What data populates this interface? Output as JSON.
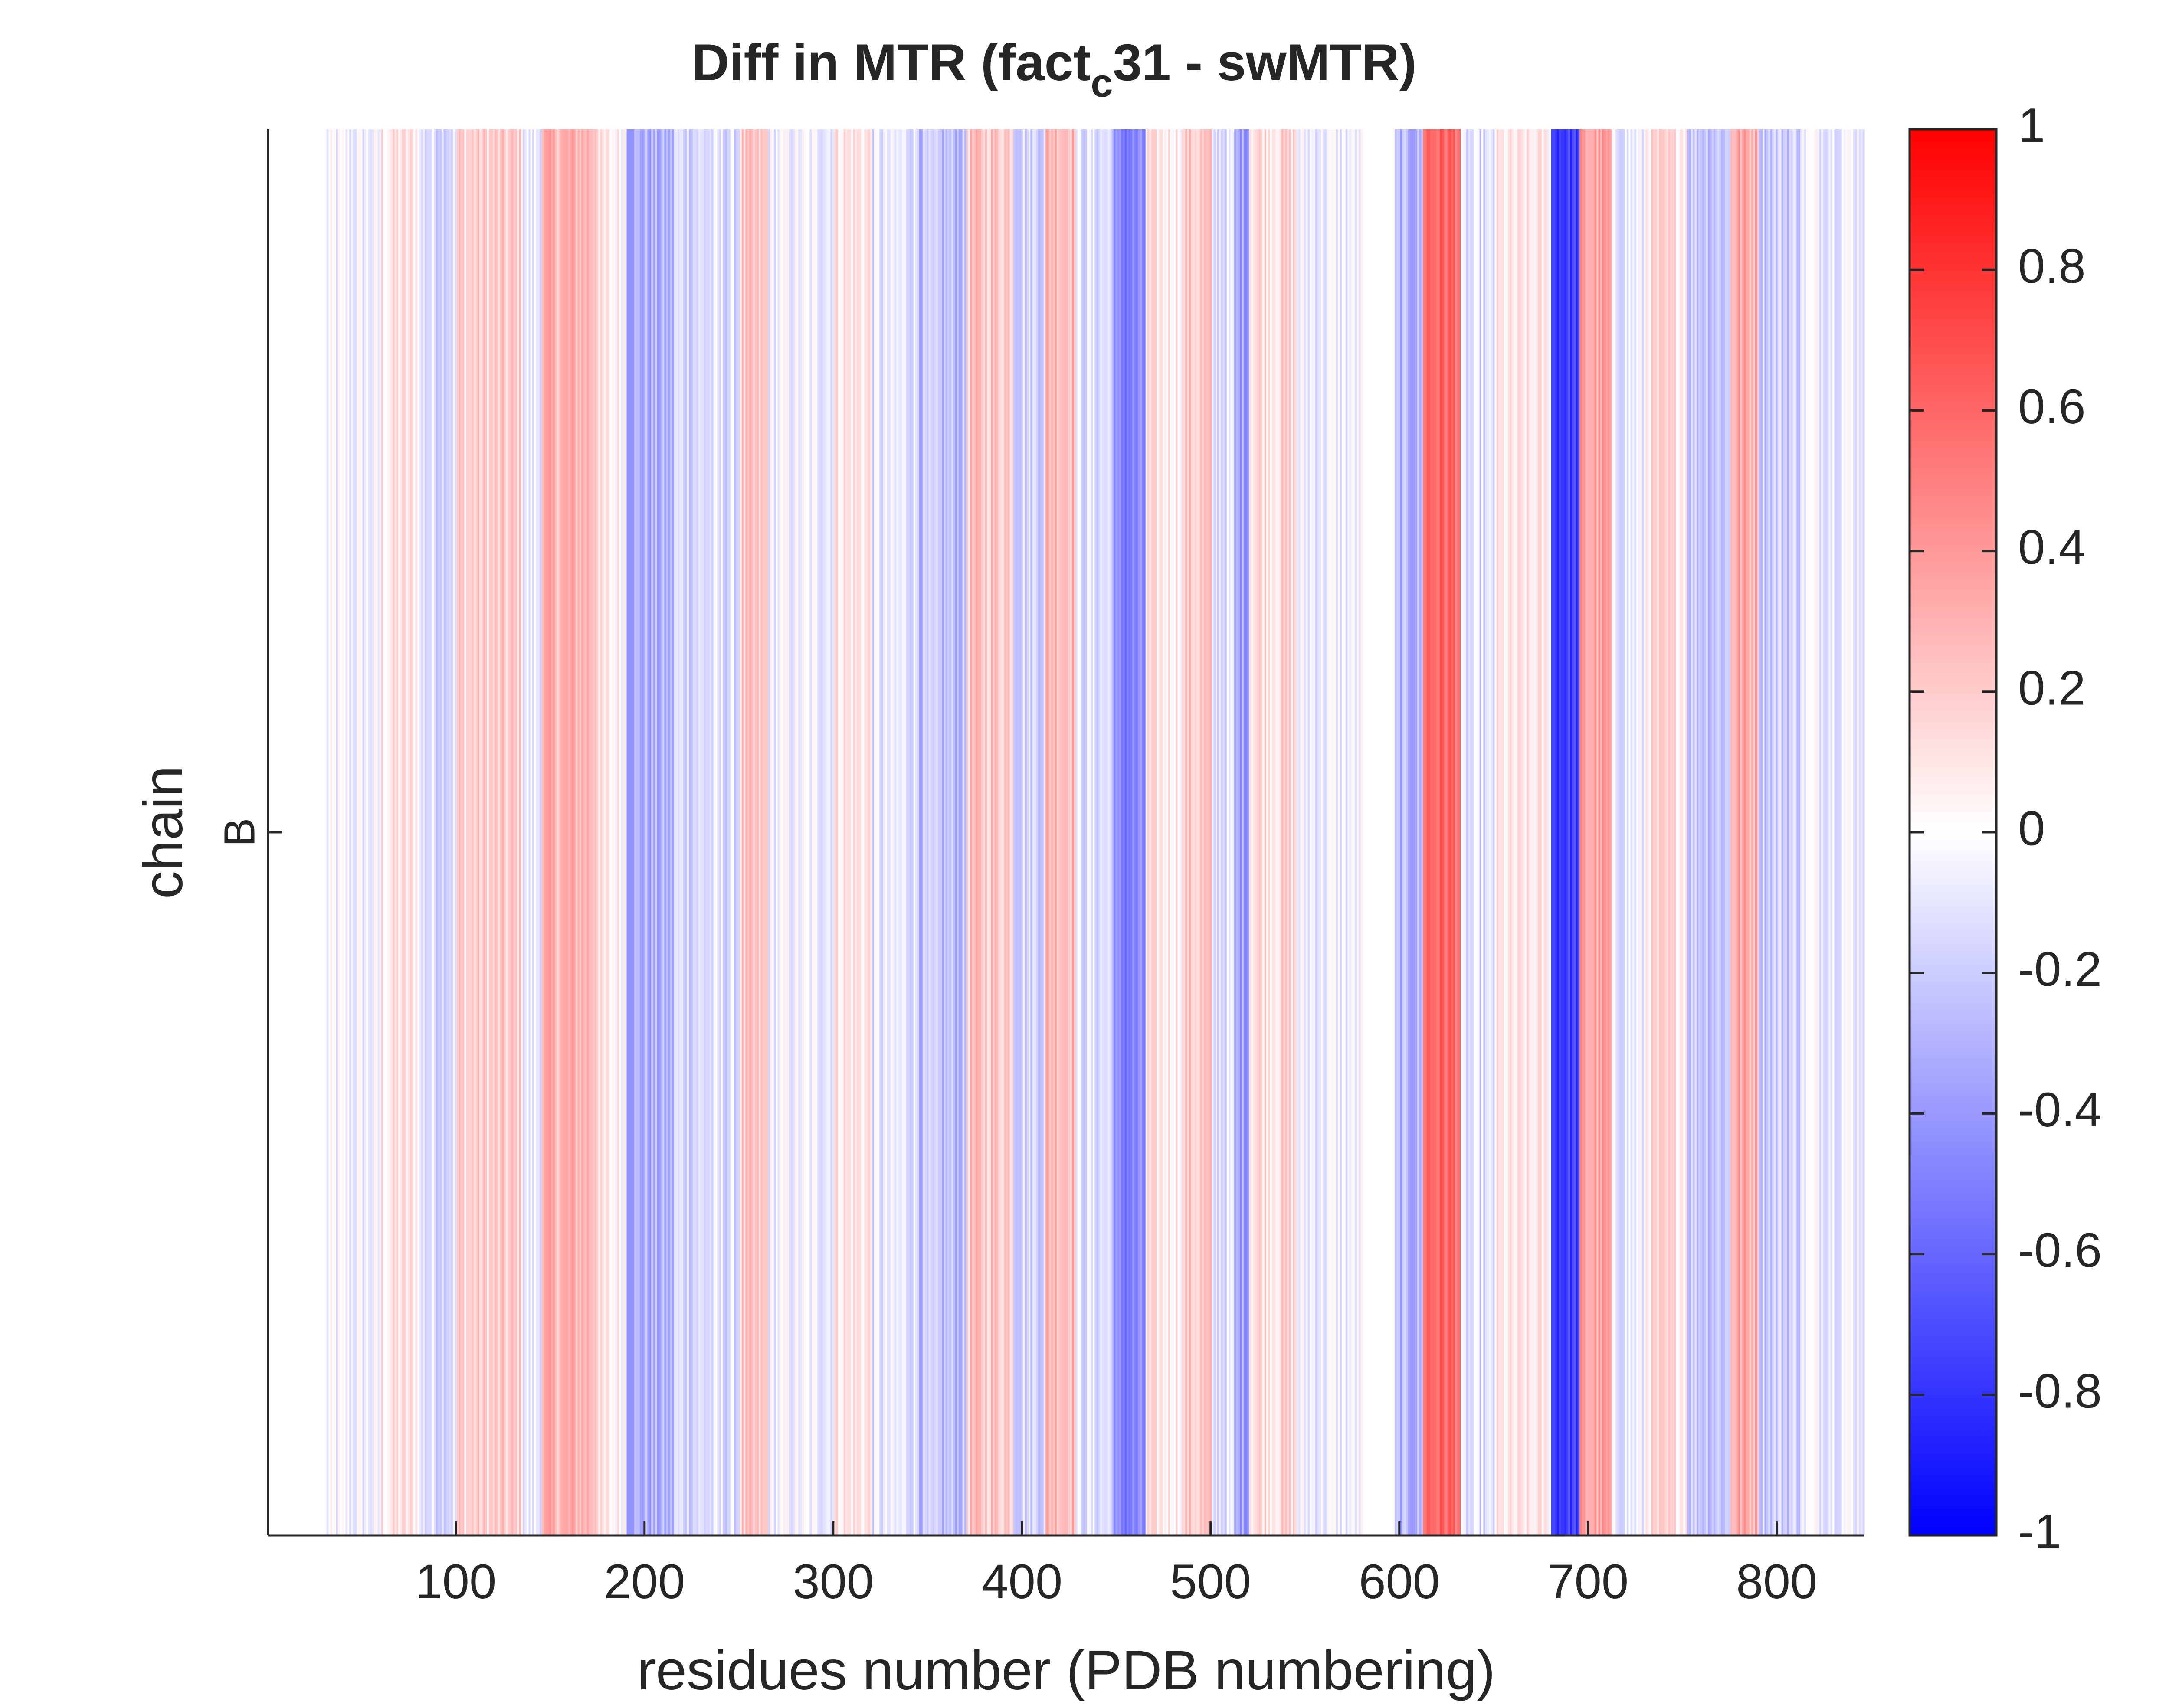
{
  "chart_data": {
    "type": "heatmap",
    "title": {
      "main": "Diff in MTR (fact",
      "sub": "c",
      "rest": "31 - swMTR)"
    },
    "xlabel": "residues number (PDB numbering)",
    "ylabel": "chain",
    "y_categories": [
      "B"
    ],
    "xlim": [
      1,
      846
    ],
    "x_ticks": [
      100,
      200,
      300,
      400,
      500,
      600,
      700,
      800
    ],
    "x_tick_labels": [
      "100",
      "200",
      "300",
      "400",
      "500",
      "600",
      "700",
      "800"
    ],
    "color_limits": [
      -1,
      1
    ],
    "colorbar_ticks": [
      1,
      0.8,
      0.6,
      0.4,
      0.2,
      0,
      -0.2,
      -0.4,
      -0.6,
      -0.8,
      -1
    ],
    "colorbar_tick_labels": [
      "1",
      "0.8",
      "0.6",
      "0.4",
      "0.2",
      "0",
      "-0.2",
      "-0.4",
      "-0.6",
      "-0.8",
      "-1"
    ],
    "colormap": {
      "low": "#0000ff",
      "mid": "#ffffff",
      "high": "#ff0000"
    },
    "residue_start": 31,
    "gaps": [
      [
        581,
        597
      ]
    ],
    "value_segments": [
      {
        "from": 31,
        "to": 60,
        "value": -0.06
      },
      {
        "from": 61,
        "to": 80,
        "value": 0.1
      },
      {
        "from": 81,
        "to": 100,
        "value": -0.12
      },
      {
        "from": 101,
        "to": 135,
        "value": 0.18
      },
      {
        "from": 136,
        "to": 145,
        "value": -0.08
      },
      {
        "from": 146,
        "to": 175,
        "value": 0.3
      },
      {
        "from": 176,
        "to": 190,
        "value": 0.05
      },
      {
        "from": 191,
        "to": 215,
        "value": -0.32
      },
      {
        "from": 216,
        "to": 250,
        "value": -0.14
      },
      {
        "from": 251,
        "to": 265,
        "value": 0.18
      },
      {
        "from": 266,
        "to": 300,
        "value": -0.05
      },
      {
        "from": 301,
        "to": 320,
        "value": 0.1
      },
      {
        "from": 321,
        "to": 345,
        "value": -0.1
      },
      {
        "from": 346,
        "to": 370,
        "value": -0.25
      },
      {
        "from": 371,
        "to": 395,
        "value": 0.22
      },
      {
        "from": 396,
        "to": 412,
        "value": -0.15
      },
      {
        "from": 413,
        "to": 428,
        "value": 0.3
      },
      {
        "from": 429,
        "to": 448,
        "value": -0.12
      },
      {
        "from": 449,
        "to": 465,
        "value": -0.5
      },
      {
        "from": 466,
        "to": 485,
        "value": 0.08
      },
      {
        "from": 486,
        "to": 500,
        "value": 0.2
      },
      {
        "from": 501,
        "to": 512,
        "value": -0.12
      },
      {
        "from": 513,
        "to": 520,
        "value": -0.35
      },
      {
        "from": 521,
        "to": 545,
        "value": 0.15
      },
      {
        "from": 546,
        "to": 580,
        "value": -0.06
      },
      {
        "from": 598,
        "to": 612,
        "value": -0.3
      },
      {
        "from": 613,
        "to": 632,
        "value": 0.6
      },
      {
        "from": 633,
        "to": 650,
        "value": -0.15
      },
      {
        "from": 651,
        "to": 680,
        "value": 0.06
      },
      {
        "from": 681,
        "to": 695,
        "value": -0.75
      },
      {
        "from": 696,
        "to": 712,
        "value": 0.35
      },
      {
        "from": 713,
        "to": 730,
        "value": -0.08
      },
      {
        "from": 731,
        "to": 752,
        "value": 0.12
      },
      {
        "from": 753,
        "to": 775,
        "value": -0.2
      },
      {
        "from": 776,
        "to": 790,
        "value": 0.32
      },
      {
        "from": 791,
        "to": 812,
        "value": -0.18
      },
      {
        "from": 813,
        "to": 846,
        "value": -0.04
      }
    ],
    "grid": false,
    "legend": "none"
  }
}
